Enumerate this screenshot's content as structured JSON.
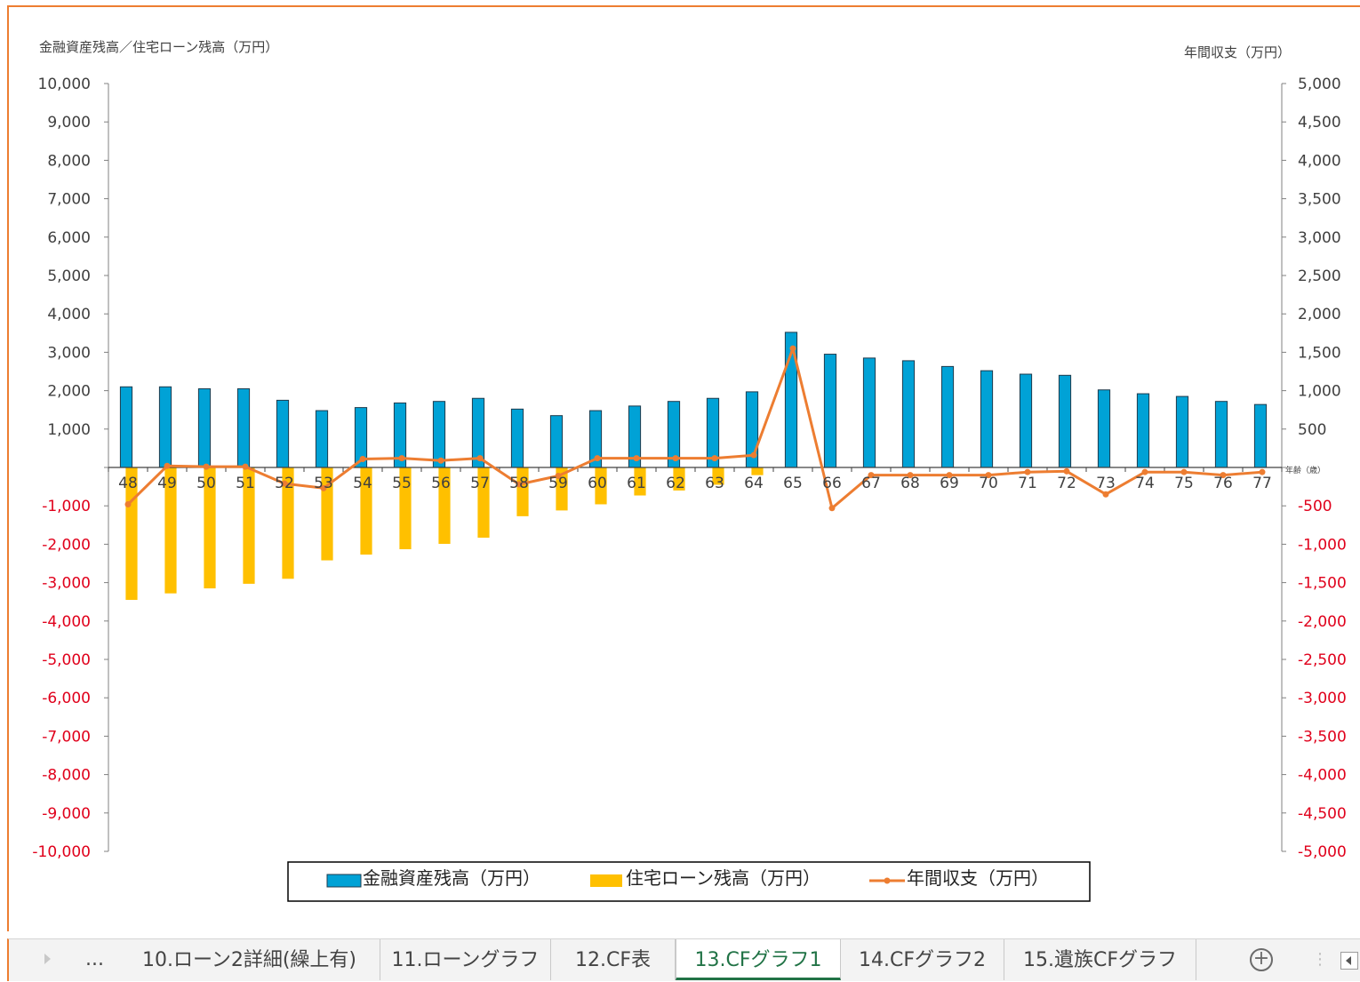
{
  "chart_data": {
    "type": "bar",
    "left_axis_title": "金融資産残高／住宅ローン残高（万円）",
    "right_axis_title": "年間収支（万円）",
    "x_axis_unit_label": "年齢（歳）",
    "ylim_left": [
      -10000,
      10000
    ],
    "ylim_right": [
      -5000,
      5000
    ],
    "left_ticks": [
      10000,
      9000,
      8000,
      7000,
      6000,
      5000,
      4000,
      3000,
      2000,
      1000,
      0,
      -1000,
      -2000,
      -3000,
      -4000,
      -5000,
      -6000,
      -7000,
      -8000,
      -9000,
      -10000
    ],
    "left_tick_labels": [
      "10,000",
      "9,000",
      "8,000",
      "7,000",
      "6,000",
      "5,000",
      "4,000",
      "3,000",
      "2,000",
      "1,000",
      "",
      "-1,000",
      "-2,000",
      "-3,000",
      "-4,000",
      "-5,000",
      "-6,000",
      "-7,000",
      "-8,000",
      "-9,000",
      "-10,000"
    ],
    "right_tick_labels": [
      "5,000",
      "4,500",
      "4,000",
      "3,500",
      "3,000",
      "2,500",
      "2,000",
      "1,500",
      "1,000",
      "500",
      "",
      "-500",
      "-1,000",
      "-1,500",
      "-2,000",
      "-2,500",
      "-3,000",
      "-3,500",
      "-4,000",
      "-4,500",
      "-5,000"
    ],
    "categories": [
      "48",
      "49",
      "50",
      "51",
      "52",
      "53",
      "54",
      "55",
      "56",
      "57",
      "58",
      "59",
      "60",
      "61",
      "62",
      "63",
      "64",
      "65",
      "66",
      "67",
      "68",
      "69",
      "70",
      "71",
      "72",
      "73",
      "74",
      "75",
      "76",
      "77"
    ],
    "series": [
      {
        "name": "金融資産残高（万円）",
        "kind": "bar",
        "axis": "left",
        "color": "#00a2d6",
        "values": [
          2100,
          2100,
          2050,
          2050,
          1750,
          1480,
          1560,
          1680,
          1720,
          1800,
          1520,
          1350,
          1480,
          1600,
          1720,
          1800,
          1970,
          3520,
          2950,
          2850,
          2780,
          2630,
          2520,
          2430,
          2400,
          2020,
          1920,
          1850,
          1720,
          1640
        ]
      },
      {
        "name": "住宅ローン残高（万円）",
        "kind": "bar",
        "axis": "left",
        "color": "#ffc000",
        "values": [
          -3450,
          -3280,
          -3150,
          -3030,
          -2900,
          -2420,
          -2270,
          -2130,
          -1990,
          -1830,
          -1270,
          -1120,
          -960,
          -730,
          -600,
          -450,
          -200,
          0,
          0,
          0,
          0,
          0,
          0,
          0,
          0,
          0,
          0,
          0,
          0,
          0
        ]
      },
      {
        "name": "年間収支（万円）",
        "kind": "line",
        "axis": "right",
        "color": "#ed7d31",
        "values": [
          -480,
          20,
          10,
          10,
          -210,
          -270,
          110,
          120,
          90,
          120,
          -220,
          -110,
          120,
          120,
          120,
          120,
          160,
          1550,
          -530,
          -100,
          -100,
          -100,
          -100,
          -60,
          -50,
          -350,
          -60,
          -60,
          -100,
          -60
        ]
      }
    ],
    "legend_position": "bottom"
  },
  "sheet_tabs": {
    "ellipsis": "...",
    "tabs": [
      {
        "label": "10.ローン2詳細(繰上有)"
      },
      {
        "label": "11.ローングラフ"
      },
      {
        "label": "12.CF表"
      },
      {
        "label": "13.CFグラフ1",
        "active": true
      },
      {
        "label": "14.CFグラフ2"
      },
      {
        "label": "15.遺族CFグラフ"
      }
    ],
    "add_sheet_icon": "plus-circle-icon"
  }
}
